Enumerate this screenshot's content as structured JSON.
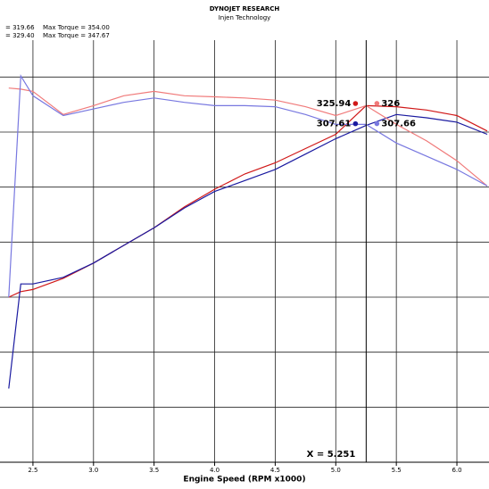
{
  "chart_data": {
    "type": "line",
    "title": "DYNOJET RESEARCH",
    "subtitle": "Injen Technology",
    "header_lines": [
      [
        "= 319.66",
        "Max Torque = 354.00"
      ],
      [
        "= 329.40",
        "Max Torque = 347.67"
      ]
    ],
    "xlabel": "Engine Speed (RPM x1000)",
    "x": [
      2.3,
      2.4,
      2.5,
      2.75,
      3.0,
      3.25,
      3.5,
      3.75,
      4.0,
      4.25,
      4.5,
      4.75,
      5.0,
      5.25,
      5.5,
      5.75,
      6.0,
      6.25
    ],
    "series": [
      {
        "color": "#d01818",
        "values": [
          150,
          155,
          157,
          167,
          181,
          197,
          213,
          232,
          248,
          262,
          272,
          285,
          298,
          324,
          323,
          320,
          315,
          301
        ]
      },
      {
        "color": "#1a1aa0",
        "values": [
          67,
          162,
          162,
          168,
          181,
          197,
          213,
          231,
          246,
          256,
          266,
          280,
          294,
          306,
          316,
          313,
          309,
          298
        ]
      },
      {
        "color": "#f07a7a",
        "values": [
          340,
          339,
          337,
          316,
          324,
          333,
          337,
          333,
          332,
          331,
          329,
          323,
          315,
          324,
          307,
          292,
          274,
          251
        ]
      },
      {
        "color": "#7878e0",
        "values": [
          150,
          351,
          333,
          315,
          321,
          327,
          331,
          327,
          324,
          324,
          323,
          316,
          307,
          307,
          290,
          278,
          266,
          251
        ]
      }
    ],
    "xlim": [
      2.228,
      6.265
    ],
    "ylim": [
      0,
      420
    ],
    "xticks": [
      2.5,
      3.0,
      3.5,
      4.0,
      4.5,
      5.0,
      5.5,
      6.0
    ],
    "xtick_labels": [
      "2.5",
      "3.0",
      "3.5",
      "4.0",
      "4.5",
      "5.0",
      "5.5",
      "6.0"
    ],
    "yticks": [
      50,
      100,
      150,
      200,
      250,
      300,
      350,
      400
    ],
    "grid": true,
    "cursor": {
      "value": 5.251,
      "label": "X = 5.251"
    },
    "readouts": [
      {
        "value": 325.94,
        "color": "#d01818",
        "side": "left"
      },
      {
        "value": 326.0,
        "color": "#f07a7a",
        "side": "right"
      },
      {
        "value": 307.61,
        "color": "#1a1aa0",
        "side": "left"
      },
      {
        "value": 307.66,
        "color": "#7878e0",
        "side": "right"
      }
    ]
  }
}
